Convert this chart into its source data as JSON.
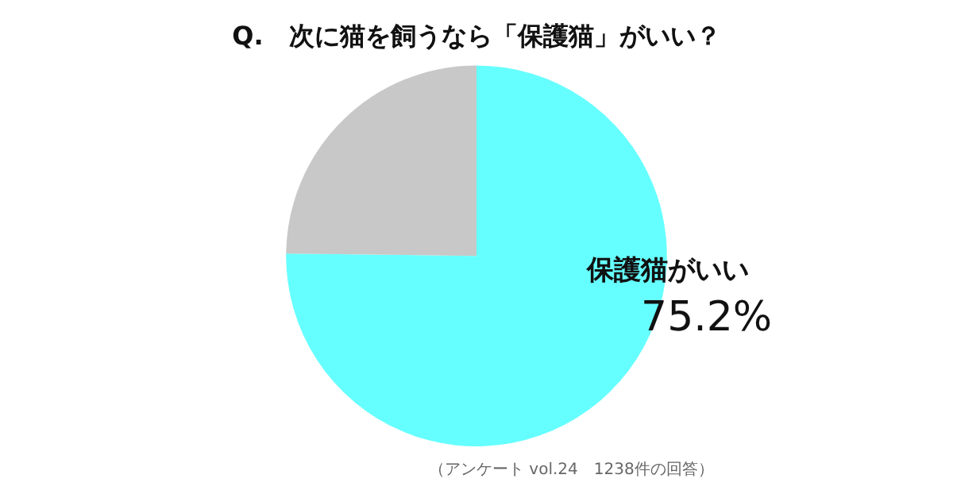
{
  "chart_data": {
    "type": "pie",
    "title": "Q.　次に猫を飼うなら「保護猫」がいい？",
    "categories": [
      "保護猫がいい",
      null
    ],
    "values": [
      75.2,
      24.8
    ],
    "value_labels": [
      "75.2%",
      null
    ],
    "colors": [
      "#66ffff",
      "#c8c8c8"
    ],
    "legend": false,
    "annotations": [
      "（アンケート vol.24　1238件の回答）"
    ]
  }
}
